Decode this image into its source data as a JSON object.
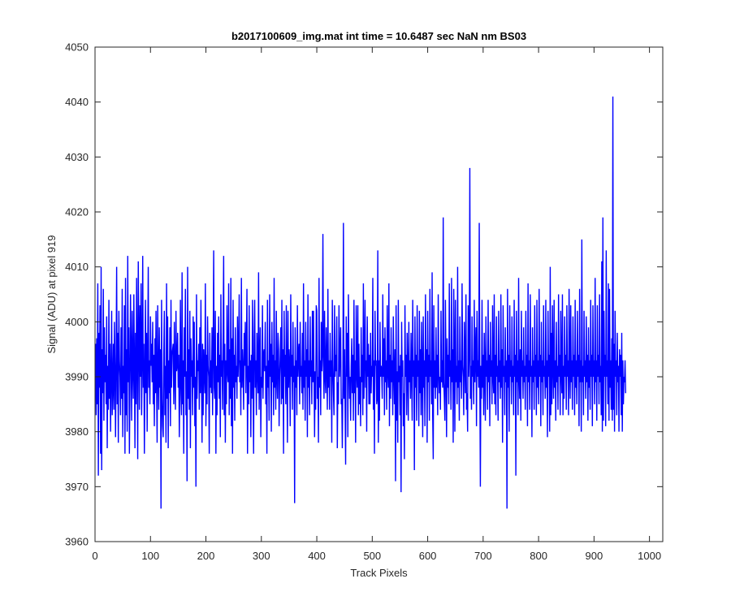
{
  "chart_data": {
    "type": "line",
    "title": "b2017100609_img.mat int time = 10.6487 sec  NaN nm BS03",
    "xlabel": "Track Pixels",
    "ylabel": "Signal (ADU) at pixel 919",
    "xlim": [
      0,
      1024
    ],
    "ylim": [
      3960,
      4050
    ],
    "x_ticks": [
      0,
      100,
      200,
      300,
      400,
      500,
      600,
      700,
      800,
      900,
      1000
    ],
    "y_ticks": [
      3960,
      3970,
      3980,
      3990,
      4000,
      4010,
      4020,
      4030,
      4040,
      4050
    ],
    "grid": false,
    "legend": "none",
    "series": [
      {
        "color": "#0000ff",
        "x_start": 1,
        "x_step": 1,
        "values": [
          3996,
          3983,
          3997,
          3985,
          4007,
          3972,
          3998,
          3988,
          4003,
          3976,
          4010,
          3973,
          3995,
          3987,
          4006,
          3982,
          3999,
          3989,
          3994,
          3985,
          4001,
          3977,
          3992,
          3984,
          4004,
          3986,
          3996,
          3980,
          3990,
          4002,
          3983,
          3988,
          3996,
          3984,
          4000,
          3991,
          3979,
          3993,
          4010,
          3985,
          3998,
          3978,
          4002,
          3993,
          3990,
          3983,
          3999,
          3986,
          4006,
          3979,
          3992,
          3987,
          4003,
          3976,
          4008,
          3983,
          3995,
          3980,
          4012,
          3989,
          3999,
          3976,
          3988,
          4005,
          3994,
          3982,
          4002,
          3992,
          3986,
          4005,
          3993,
          3977,
          3998,
          3985,
          4008,
          3994,
          3975,
          4011,
          3998,
          3984,
          4003,
          3990,
          4007,
          3983,
          3993,
          4012,
          3988,
          3996,
          3976,
          3990,
          4004,
          3987,
          3998,
          3980,
          3994,
          4010,
          3988,
          3993,
          3985,
          4001,
          3992,
          3996,
          3989,
          4000,
          3985,
          3994,
          3981,
          3997,
          3987,
          4002,
          3989,
          3978,
          4003,
          3991,
          3984,
          3999,
          3988,
          3995,
          3966,
          4004,
          3986,
          3981,
          3979,
          3994,
          4002,
          3983,
          3992,
          3978,
          4007,
          3986,
          4001,
          3977,
          3993,
          3987,
          3999,
          3981,
          4004,
          3988,
          3994,
          3995,
          3996,
          3985,
          4000,
          3990,
          3984,
          4002,
          3991,
          3992,
          3998,
          3988,
          3994,
          3979,
          3989,
          4004,
          3987,
          3983,
          4009,
          3985,
          3993,
          3976,
          3999,
          3990,
          4006,
          3983,
          3991,
          3971,
          4010,
          3986,
          3995,
          3984,
          4002,
          3977,
          3997,
          3990,
          3993,
          3983,
          4001,
          3988,
          4000,
          3981,
          3990,
          3970,
          4005,
          3986,
          3993,
          3991,
          3996,
          3984,
          3999,
          3987,
          4004,
          3990,
          3978,
          3996,
          3983,
          3995,
          3991,
          3987,
          4007,
          3981,
          3994,
          3985,
          4001,
          3992,
          3990,
          3976,
          3998,
          3988,
          3993,
          3987,
          3999,
          3983,
          3994,
          4013,
          3988,
          3986,
          4002,
          3976,
          3992,
          3983,
          3998,
          3989,
          4001,
          3986,
          3994,
          3979,
          4005,
          3990,
          3993,
          3984,
          3998,
          4012,
          3983,
          3996,
          3978,
          3993,
          3985,
          4003,
          3991,
          3989,
          4007,
          3983,
          3995,
          3986,
          4008,
          3981,
          3997,
          3976,
          4004,
          3988,
          3994,
          3982,
          3999,
          3989,
          3992,
          3986,
          4001,
          3990,
          3994,
          4005,
          3989,
          3993,
          3983,
          4008,
          3988,
          3995,
          3991,
          3984,
          3998,
          3992,
          4000,
          3987,
          3994,
          4006,
          3976,
          3992,
          3985,
          4003,
          3989,
          3993,
          3979,
          3994,
          3986,
          4004,
          3990,
          3976,
          3997,
          4004,
          3988,
          3993,
          3983,
          3998,
          3991,
          3987,
          4009,
          3984,
          3993,
          3999,
          3979,
          3990,
          3988,
          4003,
          3986,
          3994,
          3995,
          3991,
          4000,
          3985,
          3992,
          3976,
          4004,
          3988,
          3993,
          3982,
          4005,
          3990,
          3996,
          3980,
          4000,
          3989,
          3994,
          3983,
          4008,
          3988,
          3993,
          3984,
          4002,
          3990,
          3986,
          3998,
          3995,
          3981,
          3990,
          3994,
          3999,
          3985,
          4004,
          3986,
          3995,
          3976,
          4002,
          3990,
          3994,
          3985,
          4003,
          3991,
          3978,
          4002,
          3988,
          3995,
          3992,
          3981,
          4005,
          3990,
          3994,
          3984,
          4000,
          3989,
          3992,
          3967,
          3999,
          3988,
          3993,
          3983,
          4003,
          3990,
          3994,
          3996,
          3985,
          4000,
          3990,
          3992,
          3987,
          3998,
          3984,
          4007,
          3988,
          3993,
          3982,
          4000,
          3990,
          3995,
          3979,
          4005,
          3988,
          3993,
          3983,
          4001,
          3990,
          3993,
          3985,
          4002,
          3989,
          4002,
          3990,
          3979,
          3991,
          3984,
          4003,
          4002,
          3986,
          3990,
          3978,
          4008,
          3988,
          3993,
          3983,
          4000,
          3991,
          3994,
          4016,
          3992,
          3986,
          4002,
          3990,
          3987,
          3999,
          3992,
          3984,
          4006,
          3988,
          3993,
          3984,
          3998,
          3990,
          3993,
          3978,
          4004,
          3992,
          3987,
          3983,
          4003,
          3990,
          3994,
          3991,
          4001,
          3977,
          3989,
          3985,
          4003,
          3990,
          3994,
          3999,
          3985,
          3986,
          3977,
          3989,
          4018,
          3986,
          3995,
          3985,
          3974,
          4001,
          3990,
          3998,
          3979,
          4005,
          3993,
          3986,
          3990,
          3982,
          3992,
          3997,
          3987,
          3994,
          3982,
          4004,
          3987,
          3993,
          3978,
          4003,
          3991,
          3988,
          4003,
          3983,
          3996,
          3985,
          3990,
          3981,
          3999,
          3989,
          3994,
          3983,
          4007,
          3986,
          3993,
          4004,
          3988,
          3993,
          3980,
          4001,
          3990,
          3996,
          3985,
          3994,
          3985,
          3998,
          3987,
          3992,
          3990,
          4008,
          3984,
          3993,
          3976,
          4002,
          3992,
          3993,
          3985,
          3986,
          4013,
          3978,
          3993,
          3982,
          4000,
          3990,
          3992,
          3991,
          3986,
          4005,
          3990,
          3997,
          3983,
          3999,
          3989,
          3993,
          3984,
          4003,
          3991,
          3988,
          4007,
          3981,
          3994,
          3986,
          3999,
          3989,
          3993,
          3983,
          4001,
          3991,
          3985,
          3995,
          3971,
          4003,
          3982,
          3991,
          3978,
          4004,
          3989,
          3992,
          3983,
          3994,
          3969,
          4000,
          3990,
          3993,
          3981,
          3987,
          3975,
          4003,
          3990,
          3994,
          3983,
          3998,
          3991,
          3982,
          4000,
          3989,
          3993,
          3986,
          3998,
          3991,
          3982,
          4004,
          3990,
          3993,
          3973,
          4001,
          3988,
          3994,
          3982,
          4003,
          3990,
          3993,
          3981,
          4002,
          3987,
          3995,
          3983,
          4000,
          3991,
          3979,
          4001,
          3988,
          3993,
          3981,
          4005,
          3990,
          3995,
          3978,
          4002,
          3989,
          3994,
          3982,
          4006,
          3990,
          3993,
          3985,
          4009,
          3983,
          3975,
          4003,
          3988,
          3993,
          3986,
          3999,
          3988,
          3994,
          3983,
          4005,
          3991,
          3987,
          3990,
          3984,
          4002,
          3989,
          3993,
          3988,
          4019,
          3989,
          3986,
          3982,
          4004,
          3992,
          3979,
          3997,
          3988,
          3994,
          3985,
          4007,
          3990,
          3993,
          3984,
          4008,
          3989,
          3995,
          3978,
          4006,
          3994,
          3980,
          4004,
          3989,
          3992,
          3985,
          4010,
          3988,
          3993,
          3982,
          4001,
          3989,
          3993,
          3986,
          4007,
          3992,
          3990,
          3983,
          4000,
          3993,
          3987,
          4005,
          3984,
          3987,
          3980,
          4003,
          3990,
          3994,
          4028,
          3986,
          3992,
          3984,
          4001,
          3990,
          3993,
          3985,
          4004,
          3989,
          3994,
          3999,
          3981,
          4002,
          3990,
          3993,
          3988,
          4018,
          3990,
          3970,
          3992,
          3986,
          4004,
          3988,
          3994,
          3983,
          3998,
          3991,
          3982,
          4001,
          3990,
          3993,
          3984,
          4004,
          3989,
          3994,
          3981,
          4000,
          3990,
          3993,
          3985,
          4003,
          3990,
          3987,
          4005,
          3985,
          3994,
          3983,
          4001,
          3990,
          3992,
          3982,
          4002,
          3989,
          3993,
          3986,
          4005,
          3988,
          3995,
          3978,
          4003,
          3990,
          3992,
          3983,
          3999,
          3989,
          3993,
          3966,
          4006,
          3988,
          3994,
          3980,
          4003,
          3990,
          3993,
          3985,
          4001,
          3989,
          3992,
          3983,
          4004,
          3990,
          3994,
          3972,
          4002,
          3989,
          3993,
          3983,
          4008,
          3990,
          3986,
          3995,
          3982,
          4002,
          3990,
          3993,
          3986,
          3999,
          3989,
          3992,
          3984,
          4002,
          3990,
          3994,
          3981,
          4007,
          3989,
          3993,
          3984,
          4005,
          3990,
          3992,
          3979,
          3999,
          3989,
          3993,
          3984,
          4003,
          3990,
          3994,
          3983,
          4004,
          3988,
          3993,
          3985,
          4006,
          3990,
          3994,
          3981,
          4000,
          3989,
          3993,
          3983,
          4003,
          3990,
          3992,
          3986,
          4004,
          3988,
          3993,
          3979,
          4002,
          3990,
          3994,
          3980,
          4010,
          3983,
          3998,
          3985,
          4003,
          3992,
          3986,
          4004,
          3988,
          3993,
          3982,
          4000,
          3989,
          3992,
          3984,
          4005,
          3990,
          3994,
          3983,
          4002,
          3991,
          3987,
          4005,
          3983,
          3992,
          3986,
          4001,
          3990,
          3994,
          3984,
          4003,
          3990,
          3993,
          3983,
          4006,
          3992,
          3986,
          4003,
          3989,
          3993,
          3984,
          4001,
          3990,
          3994,
          3983,
          4004,
          3988,
          3993,
          3985,
          4002,
          3990,
          3994,
          3981,
          4006,
          3989,
          3993,
          3980,
          4015,
          3989,
          3992,
          3983,
          4002,
          3990,
          3993,
          3986,
          4001,
          3989,
          3994,
          3982,
          3999,
          3988,
          3993,
          3984,
          4004,
          3990,
          3994,
          3981,
          4003,
          3990,
          3993,
          3985,
          4008,
          3989,
          3993,
          3982,
          4003,
          3990,
          3994,
          3985,
          4005,
          3989,
          3992,
          3983,
          4011,
          3980,
          4019,
          3982,
          4002,
          3990,
          3994,
          3981,
          4013,
          3990,
          3993,
          3985,
          4007,
          3982,
          4006,
          3988,
          3993,
          3984,
          3997,
          3982,
          4041,
          3984,
          3996,
          3980,
          4002,
          3990,
          3993,
          3983,
          3998,
          3989,
          3992,
          3980,
          3995,
          3990,
          3994,
          3983,
          3998,
          3980,
          3993,
          3985,
          3990,
          3989,
          3993,
          3987
        ]
      }
    ]
  }
}
